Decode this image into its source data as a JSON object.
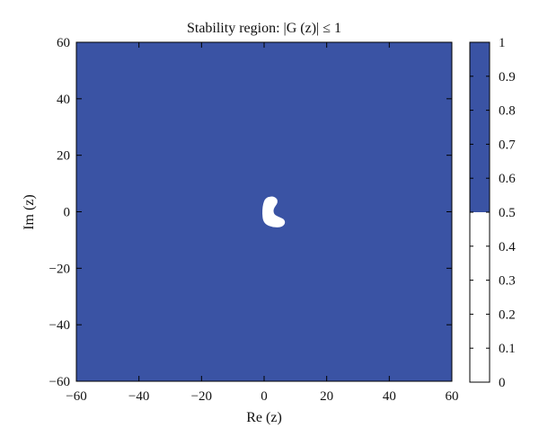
{
  "chart_data": {
    "type": "heatmap",
    "title": "Stability region: |G (z)| ≤ 1",
    "xlabel": "Re (z)",
    "ylabel": "Im (z)",
    "xlim": [
      -60,
      60
    ],
    "ylim": [
      -60,
      60
    ],
    "xticks": [
      -60,
      -40,
      -20,
      0,
      20,
      40,
      60
    ],
    "yticks": [
      -60,
      -40,
      -20,
      0,
      20,
      40,
      60
    ],
    "xtick_labels": [
      "−60",
      "−40",
      "−20",
      "0",
      "20",
      "40",
      "60"
    ],
    "ytick_labels": [
      "−60",
      "−40",
      "−20",
      "0",
      "20",
      "40",
      "60"
    ],
    "grid": false,
    "colormap": {
      "type": "binary",
      "threshold": 0.5,
      "low_color": "#ffffff",
      "high_color": "#3a53a4"
    },
    "colorbar": {
      "range": [
        0,
        1
      ],
      "ticks": [
        0,
        0.1,
        0.2,
        0.3,
        0.4,
        0.5,
        0.6,
        0.7,
        0.8,
        0.9,
        1
      ],
      "tick_labels": [
        "0",
        "0.1",
        "0.2",
        "0.3",
        "0.4",
        "0.5",
        "0.6",
        "0.7",
        "0.8",
        "0.9",
        "1"
      ]
    },
    "regions": [
      {
        "value": 1,
        "color": "#3a53a4",
        "extent": "entire plotted domain"
      },
      {
        "value": 0,
        "color": "#ffffff",
        "shape": "kidney-shaped island near the origin",
        "center": [
          3,
          0
        ],
        "re_range": [
          -0.5,
          7
        ],
        "im_range": [
          -5.5,
          5.5
        ]
      }
    ]
  }
}
